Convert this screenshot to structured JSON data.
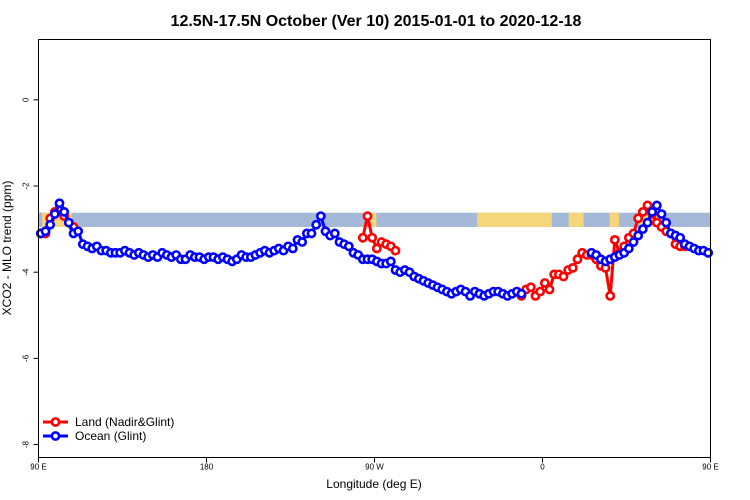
{
  "chart_data": {
    "type": "line",
    "title": "12.5N-17.5N October (Ver 10)   2015-01-01 to 2020-12-18",
    "xlabel": "Longitude (deg E)",
    "ylabel": "XCO2 - MLO trend (ppm)",
    "xlim": [
      90,
      450
    ],
    "ylim": [
      -8.3,
      1.4
    ],
    "x_ticks": [
      {
        "value": 90,
        "label": "90 E"
      },
      {
        "value": 180,
        "label": "180"
      },
      {
        "value": 270,
        "label": "90 W"
      },
      {
        "value": 360,
        "label": "0"
      },
      {
        "value": 450,
        "label": "90 E"
      },
      {
        "value": 540,
        "label": "180"
      }
    ],
    "x_ticks_note": "x axis wraps: 450 = 90 E and 540 = 180",
    "y_ticks": [
      0,
      -2,
      -4,
      -6,
      -8
    ],
    "legend": {
      "position": "bottom-left"
    },
    "land_mask_band": {
      "y_range": [
        -2.95,
        -2.62
      ],
      "sea_color": "#a4b8d8",
      "land_color": "#f6d67a"
    },
    "series": [
      {
        "name": "Land (Nadir&Glint)",
        "color": "#ff0000",
        "x": [
          91.25,
          93.75,
          96.25,
          98.75,
          101.25,
          103.75,
          106.25,
          108.75,
          263.75,
          266.25,
          268.75,
          271.25,
          273.75,
          276.25,
          278.75,
          281.25,
          346.25,
          348.75,
          351.25,
          353.75,
          356.25,
          358.75,
          361.25,
          363.75,
          366.25,
          368.75,
          371.25,
          373.75,
          376.25,
          378.75,
          381.25,
          383.75,
          386.25,
          388.75,
          391.25,
          393.75,
          396.25,
          398.75,
          401.25,
          403.75,
          406.25,
          408.75,
          411.25,
          413.75,
          416.25,
          418.75,
          421.25,
          423.75,
          426.25,
          428.75,
          431.25,
          433.75,
          436.25
        ],
        "y": [
          -3.1,
          -3.1,
          -2.75,
          -2.6,
          -2.5,
          -2.7,
          -2.85,
          -2.95,
          -3.2,
          -2.7,
          -3.2,
          -3.45,
          -3.3,
          -3.35,
          -3.4,
          -3.5,
          -4.45,
          -4.55,
          -4.4,
          -4.35,
          -4.55,
          -4.45,
          -4.25,
          -4.4,
          -4.05,
          -4.05,
          -4.1,
          -3.95,
          -3.9,
          -3.7,
          -3.55,
          -3.6,
          -3.6,
          -3.7,
          -3.85,
          -3.9,
          -4.55,
          -3.25,
          -3.55,
          -3.4,
          -3.2,
          -3.1,
          -2.75,
          -2.6,
          -2.45,
          -2.65,
          -2.85,
          -2.95,
          -3.05,
          -3.1,
          -3.35,
          -3.4,
          -3.4
        ]
      },
      {
        "name": "Ocean (Glint)",
        "color": "#0000ff",
        "x": [
          91.25,
          93.75,
          96.25,
          98.75,
          101.25,
          103.75,
          106.25,
          108.75,
          111.25,
          113.75,
          116.25,
          118.75,
          121.25,
          123.75,
          126.25,
          128.75,
          131.25,
          133.75,
          136.25,
          138.75,
          141.25,
          143.75,
          146.25,
          148.75,
          151.25,
          153.75,
          156.25,
          158.75,
          161.25,
          163.75,
          166.25,
          168.75,
          171.25,
          173.75,
          176.25,
          178.75,
          181.25,
          183.75,
          186.25,
          188.75,
          191.25,
          193.75,
          196.25,
          198.75,
          201.25,
          203.75,
          206.25,
          208.75,
          211.25,
          213.75,
          216.25,
          218.75,
          221.25,
          223.75,
          226.25,
          228.75,
          231.25,
          233.75,
          236.25,
          238.75,
          241.25,
          243.75,
          246.25,
          248.75,
          251.25,
          253.75,
          256.25,
          258.75,
          261.25,
          263.75,
          266.25,
          268.75,
          271.25,
          273.75,
          276.25,
          278.75,
          281.25,
          283.75,
          286.25,
          288.75,
          291.25,
          293.75,
          296.25,
          298.75,
          301.25,
          303.75,
          306.25,
          308.75,
          311.25,
          313.75,
          316.25,
          318.75,
          321.25,
          323.75,
          326.25,
          328.75,
          331.25,
          333.75,
          336.25,
          338.75,
          341.25,
          343.75,
          346.25,
          348.75,
          386.25,
          388.75,
          391.25,
          393.75,
          396.25,
          398.75,
          401.25,
          403.75,
          406.25,
          408.75,
          411.25,
          413.75,
          416.25,
          418.75,
          421.25,
          423.75,
          426.25,
          428.75,
          431.25,
          433.75,
          436.25,
          438.75,
          441.25,
          443.75,
          446.25,
          448.75
        ],
        "y": [
          -3.1,
          -3.05,
          -2.9,
          -2.65,
          -2.4,
          -2.6,
          -2.85,
          -3.1,
          -3.05,
          -3.35,
          -3.4,
          -3.45,
          -3.4,
          -3.5,
          -3.5,
          -3.55,
          -3.55,
          -3.55,
          -3.5,
          -3.55,
          -3.6,
          -3.55,
          -3.6,
          -3.65,
          -3.6,
          -3.65,
          -3.55,
          -3.6,
          -3.65,
          -3.6,
          -3.7,
          -3.7,
          -3.6,
          -3.65,
          -3.65,
          -3.7,
          -3.65,
          -3.65,
          -3.7,
          -3.65,
          -3.7,
          -3.75,
          -3.7,
          -3.6,
          -3.65,
          -3.65,
          -3.6,
          -3.55,
          -3.5,
          -3.55,
          -3.5,
          -3.45,
          -3.5,
          -3.4,
          -3.45,
          -3.25,
          -3.3,
          -3.1,
          -3.1,
          -2.9,
          -2.7,
          -3.05,
          -3.15,
          -3.1,
          -3.3,
          -3.35,
          -3.4,
          -3.55,
          -3.6,
          -3.7,
          -3.7,
          -3.7,
          -3.75,
          -3.8,
          -3.8,
          -3.75,
          -3.95,
          -4.0,
          -3.95,
          -4.0,
          -4.1,
          -4.15,
          -4.2,
          -4.25,
          -4.3,
          -4.35,
          -4.4,
          -4.45,
          -4.5,
          -4.45,
          -4.4,
          -4.45,
          -4.55,
          -4.45,
          -4.5,
          -4.55,
          -4.5,
          -4.45,
          -4.45,
          -4.5,
          -4.55,
          -4.5,
          -4.45,
          -4.5,
          -3.55,
          -3.6,
          -3.7,
          -3.75,
          -3.7,
          -3.65,
          -3.6,
          -3.55,
          -3.45,
          -3.3,
          -3.15,
          -3.0,
          -2.85,
          -2.6,
          -2.45,
          -2.65,
          -2.85,
          -3.1,
          -3.15,
          -3.2,
          -3.35,
          -3.4,
          -3.45,
          -3.5,
          -3.5,
          -3.55
        ]
      }
    ]
  }
}
